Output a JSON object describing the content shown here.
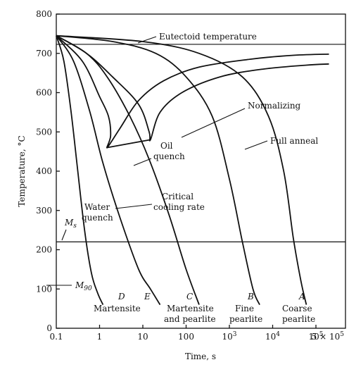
{
  "chart_data": {
    "type": "line",
    "xlabel": "Time, s",
    "ylabel": "Temperature, °C",
    "x_scale": "log",
    "xlim": [
      0.1,
      500000
    ],
    "ylim": [
      0,
      800
    ],
    "x_ticks": [
      {
        "value": 0.1,
        "base": "0.1",
        "exp": ""
      },
      {
        "value": 1,
        "base": "1",
        "exp": ""
      },
      {
        "value": 10,
        "base": "10",
        "exp": ""
      },
      {
        "value": 100,
        "base": "100",
        "exp": ""
      },
      {
        "value": 1000,
        "base": "10",
        "exp": "3"
      },
      {
        "value": 10000,
        "base": "10",
        "exp": "4"
      },
      {
        "value": 100000,
        "base": "10",
        "exp": "5"
      },
      {
        "value": 500000,
        "base": "5 × 10",
        "exp": "5"
      }
    ],
    "y_ticks": [
      0,
      100,
      200,
      300,
      400,
      500,
      600,
      700,
      800
    ],
    "reference_lines": [
      {
        "name": "Eutectoid temperature",
        "y": 723
      },
      {
        "name": "Ms",
        "y": 220
      }
    ],
    "cooling_curves": [
      {
        "name": "Water quench",
        "end_label": "D",
        "points": [
          [
            0.1,
            745
          ],
          [
            0.15,
            680
          ],
          [
            0.22,
            550
          ],
          [
            0.3,
            420
          ],
          [
            0.45,
            250
          ],
          [
            0.65,
            140
          ],
          [
            0.9,
            90
          ],
          [
            1.2,
            60
          ]
        ]
      },
      {
        "name": "Critical cooling rate",
        "end_label": "E",
        "points": [
          [
            0.1,
            745
          ],
          [
            0.25,
            680
          ],
          [
            0.6,
            550
          ],
          [
            1.2,
            420
          ],
          [
            3,
            280
          ],
          [
            8,
            150
          ],
          [
            15,
            100
          ],
          [
            25,
            60
          ]
        ]
      },
      {
        "name": "Oil quench",
        "end_label": "C",
        "points": [
          [
            0.1,
            745
          ],
          [
            0.5,
            700
          ],
          [
            1.5,
            640
          ],
          [
            5,
            540
          ],
          [
            14,
            430
          ],
          [
            40,
            290
          ],
          [
            100,
            150
          ],
          [
            200,
            60
          ]
        ]
      },
      {
        "name": "Normalizing",
        "end_label": "B",
        "points": [
          [
            0.1,
            745
          ],
          [
            2,
            730
          ],
          [
            20,
            700
          ],
          [
            100,
            640
          ],
          [
            400,
            540
          ],
          [
            1000,
            380
          ],
          [
            2000,
            220
          ],
          [
            3500,
            100
          ],
          [
            5000,
            60
          ]
        ]
      },
      {
        "name": "Full anneal",
        "end_label": "A",
        "points": [
          [
            0.1,
            745
          ],
          [
            10,
            730
          ],
          [
            200,
            700
          ],
          [
            2000,
            640
          ],
          [
            8000,
            540
          ],
          [
            18000,
            400
          ],
          [
            30000,
            230
          ],
          [
            45000,
            120
          ],
          [
            60000,
            60
          ]
        ]
      }
    ],
    "transformation_curves": [
      {
        "name": "start",
        "points": [
          [
            0.1,
            745
          ],
          [
            0.4,
            680
          ],
          [
            1,
            590
          ],
          [
            1.6,
            540
          ],
          [
            1.8,
            490
          ],
          [
            1.5,
            460
          ],
          [
            3,
            510
          ],
          [
            8,
            580
          ],
          [
            30,
            630
          ],
          [
            200,
            665
          ],
          [
            3000,
            685
          ],
          [
            30000,
            695
          ],
          [
            200000,
            698
          ]
        ]
      },
      {
        "name": "finish",
        "points": [
          [
            0.1,
            745
          ],
          [
            0.5,
            700
          ],
          [
            2,
            640
          ],
          [
            8,
            570
          ],
          [
            14,
            500
          ],
          [
            15,
            480
          ],
          [
            25,
            550
          ],
          [
            80,
            600
          ],
          [
            600,
            640
          ],
          [
            6000,
            660
          ],
          [
            60000,
            670
          ],
          [
            200000,
            673
          ]
        ]
      }
    ],
    "bainite_boundary": {
      "points": [
        [
          1.5,
          460
        ],
        [
          15,
          480
        ]
      ]
    },
    "annotations": {
      "eutectoid_temperature": "Eutectoid temperature",
      "normalizing": "Normalizing",
      "full_anneal": "Full anneal",
      "oil": "Oil",
      "quench": "quench",
      "critical": "Critical",
      "cooling_rate": "cooling rate",
      "water": "Water",
      "water_quench": "quench",
      "ms_base": "M",
      "ms_sub": "s",
      "m90_base": "M",
      "m90_sub": "90",
      "d": "D",
      "e": "E",
      "c": "C",
      "b": "B",
      "a": "A",
      "martensite": "Martensite",
      "martensite2": "Martensite",
      "and_pearlite": "and pearlite",
      "fine": "Fine",
      "fine_pearlite": "pearlite",
      "coarse": "Coarse",
      "coarse_pearlite": "pearlite"
    }
  }
}
